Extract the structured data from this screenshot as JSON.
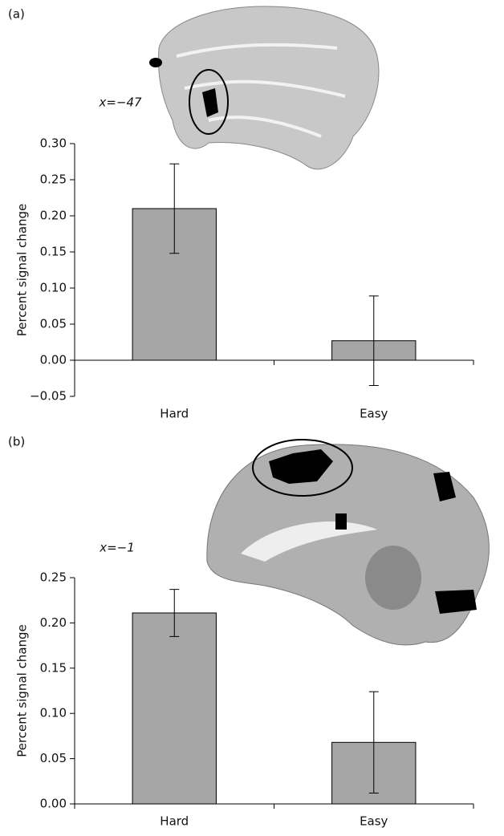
{
  "chart_data": [
    {
      "type": "bar",
      "panel_label": "(a)",
      "annotation": "x=−47",
      "y_label": "Percent signal change",
      "categories": [
        "Hard",
        "Easy"
      ],
      "values": [
        0.21,
        0.027
      ],
      "errors": [
        0.062,
        0.062
      ],
      "color": "#a6a6a6",
      "ylim": [
        -0.05,
        0.3
      ],
      "yticks": [
        {
          "value": -0.05,
          "label": "−0.05"
        },
        {
          "value": 0,
          "label": "0.00"
        },
        {
          "value": 0.05,
          "label": "0.05"
        },
        {
          "value": 0.1,
          "label": "0.10"
        },
        {
          "value": 0.15,
          "label": "0.15"
        },
        {
          "value": 0.2,
          "label": "0.20"
        },
        {
          "value": 0.25,
          "label": "0.25"
        },
        {
          "value": 0.3,
          "label": "0.30"
        }
      ]
    },
    {
      "type": "bar",
      "panel_label": "(b)",
      "annotation": "x=−1",
      "y_label": "Percent signal change",
      "categories": [
        "Hard",
        "Easy"
      ],
      "values": [
        0.211,
        0.068
      ],
      "errors": [
        0.026,
        0.056
      ],
      "color": "#a6a6a6",
      "ylim": [
        0,
        0.25
      ],
      "yticks": [
        {
          "value": 0,
          "label": "0.00"
        },
        {
          "value": 0.05,
          "label": "0.05"
        },
        {
          "value": 0.1,
          "label": "0.10"
        },
        {
          "value": 0.15,
          "label": "0.15"
        },
        {
          "value": 0.2,
          "label": "0.20"
        },
        {
          "value": 0.25,
          "label": "0.25"
        }
      ]
    }
  ]
}
